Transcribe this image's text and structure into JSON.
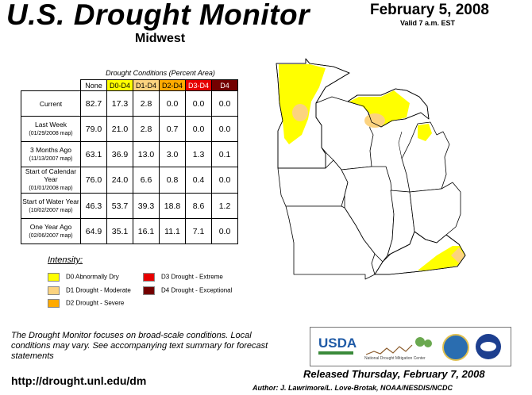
{
  "header": {
    "title": "U.S. Drought Monitor",
    "region": "Midwest",
    "date": "February 5, 2008",
    "valid": "Valid 7 a.m. EST"
  },
  "table": {
    "caption": "Drought Conditions (Percent Area)",
    "columns": [
      "None",
      "D0-D4",
      "D1-D4",
      "D2-D4",
      "D3-D4",
      "D4"
    ],
    "rows": [
      {
        "label": "Current",
        "sub": "",
        "values": [
          "82.7",
          "17.3",
          "2.8",
          "0.0",
          "0.0",
          "0.0"
        ]
      },
      {
        "label": "Last Week",
        "sub": "(01/29/2008 map)",
        "values": [
          "79.0",
          "21.0",
          "2.8",
          "0.7",
          "0.0",
          "0.0"
        ]
      },
      {
        "label": "3 Months Ago",
        "sub": "(11/13/2007 map)",
        "values": [
          "63.1",
          "36.9",
          "13.0",
          "3.0",
          "1.3",
          "0.1"
        ]
      },
      {
        "label": "Start of Calendar Year",
        "sub": "(01/01/2008 map)",
        "values": [
          "76.0",
          "24.0",
          "6.6",
          "0.8",
          "0.4",
          "0.0"
        ]
      },
      {
        "label": "Start of Water Year",
        "sub": "(10/02/2007 map)",
        "values": [
          "46.3",
          "53.7",
          "39.3",
          "18.8",
          "8.6",
          "1.2"
        ]
      },
      {
        "label": "One Year Ago",
        "sub": "(02/06/2007 map)",
        "values": [
          "64.9",
          "35.1",
          "16.1",
          "11.1",
          "7.1",
          "0.0"
        ]
      }
    ]
  },
  "legend": {
    "title": "Intensity:",
    "items": [
      {
        "label": "D0 Abnormally Dry",
        "color": "#ffff00"
      },
      {
        "label": "D1 Drought - Moderate",
        "color": "#fcd37f"
      },
      {
        "label": "D2 Drought - Severe",
        "color": "#ffaa00"
      },
      {
        "label": "D3 Drought - Extreme",
        "color": "#e60000"
      },
      {
        "label": "D4 Drought - Exceptional",
        "color": "#730000"
      }
    ]
  },
  "footer": {
    "note": "The Drought Monitor focuses on broad-scale conditions. Local conditions may vary. See accompanying text summary for forecast statements",
    "url": "http://drought.unl.edu/dm",
    "released": "Released Thursday, February 7, 2008",
    "author": "Author: J. Lawrimore/L. Love-Brotak, NOAA/NESDIS/NCDC"
  },
  "logos": {
    "usda": "USDA",
    "ndmc": "National Drought Mitigation Center"
  }
}
